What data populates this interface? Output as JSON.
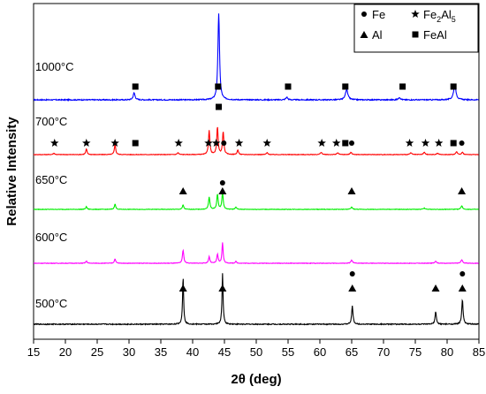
{
  "chart_data": {
    "type": "line",
    "title": "",
    "xlabel": "2θ (deg)",
    "ylabel": "Relative Intensity",
    "xlim": [
      15,
      85
    ],
    "x_ticks": [
      "15",
      "20",
      "25",
      "30",
      "35",
      "40",
      "45",
      "50",
      "55",
      "60",
      "65",
      "70",
      "75",
      "80",
      "85"
    ],
    "y_ticks": "none",
    "grid": false,
    "legend_position": "top-right",
    "legend": [
      {
        "marker": "circle",
        "label": "Fe"
      },
      {
        "marker": "star",
        "label": "Fe2Al5",
        "label_main": "Fe",
        "label_sub": "2",
        "label_mid": "Al",
        "label_sub2": "5"
      },
      {
        "marker": "triangle",
        "label": "Al"
      },
      {
        "marker": "square",
        "label": "FeAl"
      }
    ],
    "series": [
      {
        "name": "1000°C",
        "color": "#0000ff",
        "peaks": [
          {
            "x": 30.8,
            "h": 0.08,
            "w": 0.35
          },
          {
            "x": 44.1,
            "h": 1.0,
            "w": 0.3
          },
          {
            "x": 54.8,
            "h": 0.03,
            "w": 0.35
          },
          {
            "x": 64.2,
            "h": 0.12,
            "w": 0.45
          },
          {
            "x": 72.5,
            "h": 0.03,
            "w": 0.35
          },
          {
            "x": 81.2,
            "h": 0.17,
            "w": 0.45
          }
        ],
        "markers": [
          {
            "x": 31.0,
            "type": "square",
            "level": 0
          },
          {
            "x": 44.0,
            "type": "square",
            "level": 0
          },
          {
            "x": 55.0,
            "type": "square",
            "level": 0
          },
          {
            "x": 64.0,
            "type": "square",
            "level": 0
          },
          {
            "x": 73.0,
            "type": "square",
            "level": 0
          },
          {
            "x": 81.0,
            "type": "square",
            "level": 0
          }
        ]
      },
      {
        "name": "700°C",
        "color": "#ff0000",
        "peaks": [
          {
            "x": 18.2,
            "h": 0.03,
            "w": 0.3
          },
          {
            "x": 23.3,
            "h": 0.12,
            "w": 0.25
          },
          {
            "x": 27.8,
            "h": 0.22,
            "w": 0.25
          },
          {
            "x": 37.7,
            "h": 0.04,
            "w": 0.3
          },
          {
            "x": 42.6,
            "h": 0.53,
            "w": 0.25
          },
          {
            "x": 43.9,
            "h": 0.6,
            "w": 0.25
          },
          {
            "x": 44.8,
            "h": 0.5,
            "w": 0.25
          },
          {
            "x": 47.1,
            "h": 0.1,
            "w": 0.25
          },
          {
            "x": 51.7,
            "h": 0.04,
            "w": 0.3
          },
          {
            "x": 60.2,
            "h": 0.05,
            "w": 0.3
          },
          {
            "x": 62.8,
            "h": 0.04,
            "w": 0.3
          },
          {
            "x": 64.9,
            "h": 0.05,
            "w": 0.3
          },
          {
            "x": 74.3,
            "h": 0.04,
            "w": 0.3
          },
          {
            "x": 76.4,
            "h": 0.05,
            "w": 0.3
          },
          {
            "x": 78.5,
            "h": 0.03,
            "w": 0.3
          },
          {
            "x": 81.5,
            "h": 0.06,
            "w": 0.3
          },
          {
            "x": 82.4,
            "h": 0.05,
            "w": 0.3
          }
        ],
        "markers": [
          {
            "x": 18.3,
            "type": "star",
            "level": 0
          },
          {
            "x": 23.3,
            "type": "star",
            "level": 0
          },
          {
            "x": 27.8,
            "type": "star",
            "level": 0
          },
          {
            "x": 31.0,
            "type": "square",
            "level": 0
          },
          {
            "x": 37.8,
            "type": "star",
            "level": 0
          },
          {
            "x": 42.5,
            "type": "star",
            "level": 0
          },
          {
            "x": 43.7,
            "type": "star",
            "level": 0
          },
          {
            "x": 44.1,
            "type": "square",
            "level": 1
          },
          {
            "x": 44.9,
            "type": "circle",
            "level": 0
          },
          {
            "x": 47.3,
            "type": "star",
            "level": 0
          },
          {
            "x": 51.7,
            "type": "star",
            "level": 0
          },
          {
            "x": 60.3,
            "type": "star",
            "level": 0
          },
          {
            "x": 62.6,
            "type": "star",
            "level": 0
          },
          {
            "x": 64.0,
            "type": "square",
            "level": 0
          },
          {
            "x": 65.0,
            "type": "circle",
            "level": 0
          },
          {
            "x": 74.1,
            "type": "star",
            "level": 0
          },
          {
            "x": 76.6,
            "type": "star",
            "level": 0
          },
          {
            "x": 78.7,
            "type": "star",
            "level": 0
          },
          {
            "x": 81.0,
            "type": "square",
            "level": 0
          },
          {
            "x": 82.3,
            "type": "circle",
            "level": 0
          }
        ]
      },
      {
        "name": "650°C",
        "color": "#00ee00",
        "peaks": [
          {
            "x": 23.3,
            "h": 0.06,
            "w": 0.25
          },
          {
            "x": 27.8,
            "h": 0.12,
            "w": 0.25
          },
          {
            "x": 38.5,
            "h": 0.1,
            "w": 0.25
          },
          {
            "x": 42.6,
            "h": 0.28,
            "w": 0.25
          },
          {
            "x": 43.9,
            "h": 0.34,
            "w": 0.25
          },
          {
            "x": 44.7,
            "h": 0.38,
            "w": 0.25
          },
          {
            "x": 46.8,
            "h": 0.05,
            "w": 0.25
          },
          {
            "x": 65.0,
            "h": 0.05,
            "w": 0.3
          },
          {
            "x": 76.4,
            "h": 0.03,
            "w": 0.3
          },
          {
            "x": 82.3,
            "h": 0.08,
            "w": 0.3
          }
        ],
        "markers": [
          {
            "x": 38.5,
            "type": "triangle",
            "level": 0
          },
          {
            "x": 44.7,
            "type": "triangle",
            "level": 0
          },
          {
            "x": 65.0,
            "type": "triangle",
            "level": 0
          },
          {
            "x": 82.3,
            "type": "triangle",
            "level": 0
          }
        ]
      },
      {
        "name": "600°C",
        "color": "#ff00ff",
        "peaks": [
          {
            "x": 23.3,
            "h": 0.05,
            "w": 0.25
          },
          {
            "x": 27.8,
            "h": 0.1,
            "w": 0.25
          },
          {
            "x": 38.5,
            "h": 0.3,
            "w": 0.25
          },
          {
            "x": 42.6,
            "h": 0.15,
            "w": 0.25
          },
          {
            "x": 43.9,
            "h": 0.2,
            "w": 0.25
          },
          {
            "x": 44.7,
            "h": 0.47,
            "w": 0.22
          },
          {
            "x": 46.8,
            "h": 0.04,
            "w": 0.25
          },
          {
            "x": 65.0,
            "h": 0.07,
            "w": 0.3
          },
          {
            "x": 78.2,
            "h": 0.05,
            "w": 0.3
          },
          {
            "x": 82.3,
            "h": 0.08,
            "w": 0.3
          }
        ],
        "markers": [
          {
            "x": 44.7,
            "type": "circle",
            "level": 0
          }
        ]
      },
      {
        "name": "500°C",
        "color": "#000000",
        "peaks": [
          {
            "x": 38.5,
            "h": 0.58,
            "w": 0.2
          },
          {
            "x": 44.7,
            "h": 0.62,
            "w": 0.2
          },
          {
            "x": 65.1,
            "h": 0.22,
            "w": 0.25
          },
          {
            "x": 78.2,
            "h": 0.15,
            "w": 0.25
          },
          {
            "x": 82.4,
            "h": 0.3,
            "w": 0.25
          }
        ],
        "markers": [
          {
            "x": 38.5,
            "type": "triangle",
            "level": 0
          },
          {
            "x": 44.7,
            "type": "triangle",
            "level": 0
          },
          {
            "x": 65.1,
            "type": "triangle",
            "level": 0
          },
          {
            "x": 65.1,
            "type": "circle",
            "level": 1
          },
          {
            "x": 78.2,
            "type": "triangle",
            "level": 0
          },
          {
            "x": 82.4,
            "type": "triangle",
            "level": 0
          },
          {
            "x": 82.4,
            "type": "circle",
            "level": 1
          }
        ]
      }
    ]
  }
}
